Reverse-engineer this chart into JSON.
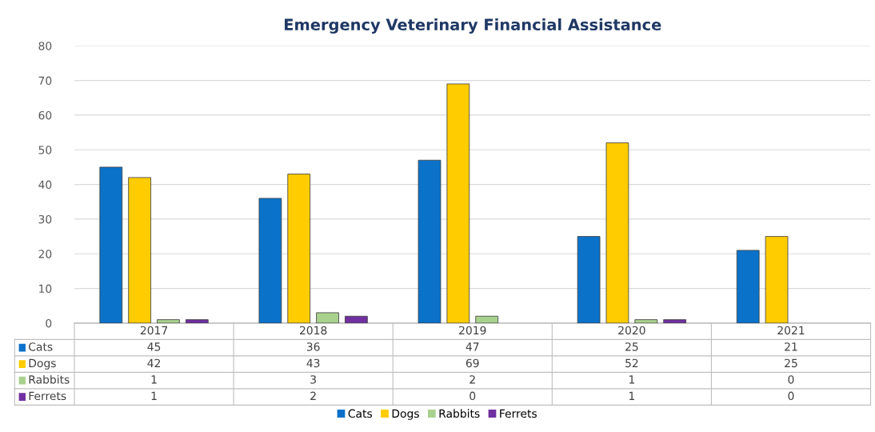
{
  "chart_data": {
    "type": "bar",
    "title": "Emergency Veterinary Financial Assistance",
    "categories": [
      "2017",
      "2018",
      "2019",
      "2020",
      "2021"
    ],
    "series": [
      {
        "name": "Cats",
        "color": "#0b72c9",
        "values": [
          45,
          36,
          47,
          25,
          21
        ]
      },
      {
        "name": "Dogs",
        "color": "#ffcc00",
        "values": [
          42,
          43,
          69,
          52,
          25
        ]
      },
      {
        "name": "Rabbits",
        "color": "#a9d18e",
        "values": [
          1,
          3,
          2,
          1,
          0
        ]
      },
      {
        "name": "Ferrets",
        "color": "#7030a0",
        "values": [
          1,
          2,
          0,
          1,
          0
        ]
      }
    ],
    "ylim": [
      0,
      80
    ],
    "yticks": [
      0,
      10,
      20,
      30,
      40,
      50,
      60,
      70,
      80
    ],
    "grid": "y",
    "legend": "bottom",
    "data_labels": true
  }
}
